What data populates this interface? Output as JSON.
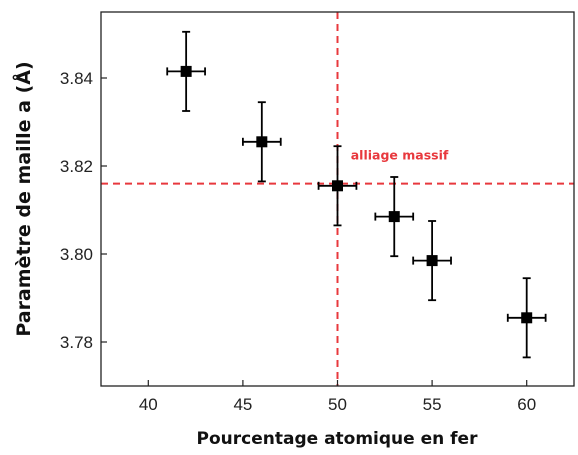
{
  "chart_data": {
    "type": "scatter",
    "xlabel": "Pourcentage atomique en fer",
    "ylabel": "Paramètre de maille a (Å)",
    "xlim": [
      37.5,
      62.5
    ],
    "ylim": [
      3.77,
      3.855
    ],
    "x_ticks": [
      40,
      45,
      50,
      55,
      60
    ],
    "y_ticks": [
      3.78,
      3.8,
      3.82,
      3.84
    ],
    "x_tick_labels": [
      "40",
      "45",
      "50",
      "55",
      "60"
    ],
    "y_tick_labels": [
      "3.78",
      "3.80",
      "3.82",
      "3.84"
    ],
    "grid": false,
    "series": [
      {
        "marker": "square",
        "color": "#000000",
        "points": [
          {
            "x": 42,
            "y": 3.8415,
            "xerr": 1,
            "yerr": 0.009
          },
          {
            "x": 46,
            "y": 3.8255,
            "xerr": 1,
            "yerr": 0.009
          },
          {
            "x": 50,
            "y": 3.8155,
            "xerr": 1,
            "yerr": 0.009
          },
          {
            "x": 53,
            "y": 3.8085,
            "xerr": 1,
            "yerr": 0.009
          },
          {
            "x": 55,
            "y": 3.7985,
            "xerr": 1,
            "yerr": 0.009
          },
          {
            "x": 60,
            "y": 3.7855,
            "xerr": 1,
            "yerr": 0.009
          }
        ]
      }
    ],
    "reference_lines": [
      {
        "orientation": "horizontal",
        "value": 3.816,
        "color": "#e8383d",
        "style": "dashed"
      },
      {
        "orientation": "vertical",
        "value": 50,
        "color": "#e8383d",
        "style": "dashed"
      }
    ],
    "annotations": [
      {
        "text": "alliage massif",
        "x": 50.7,
        "y": 3.8215,
        "color": "#e8383d"
      }
    ]
  }
}
